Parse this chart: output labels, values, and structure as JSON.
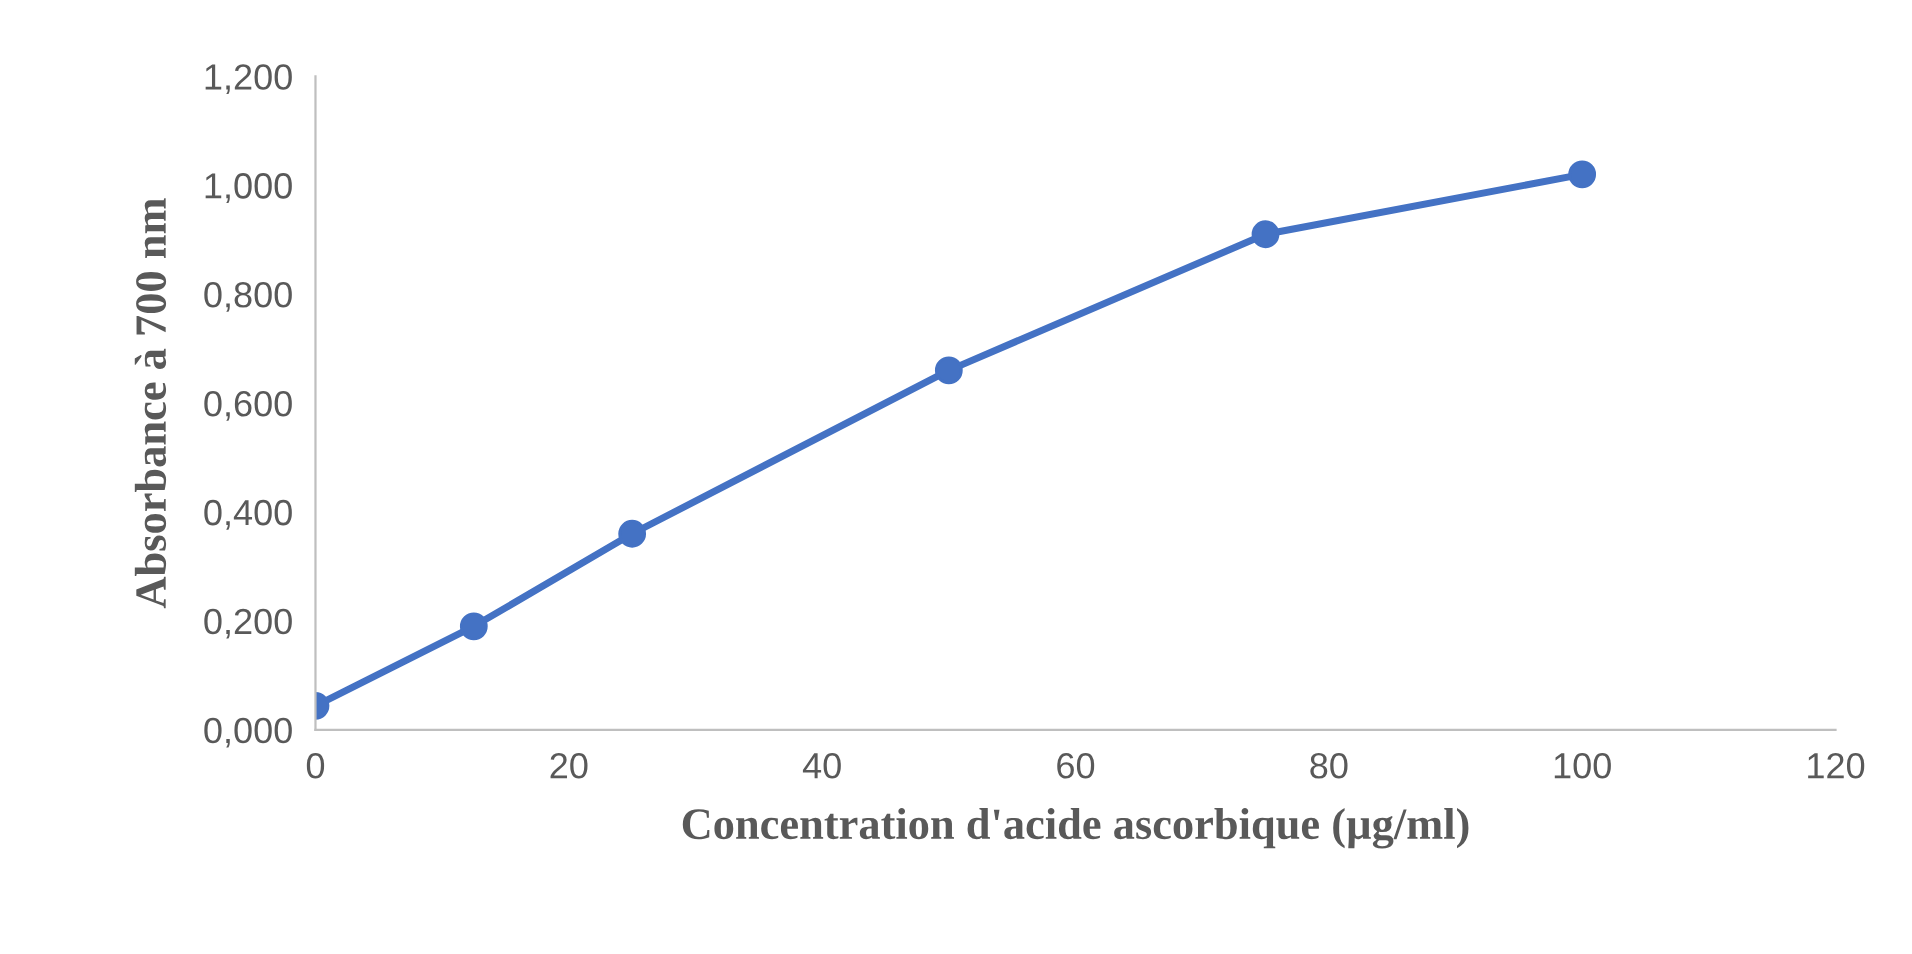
{
  "chart_data": {
    "type": "line",
    "xlabel": "Concentration d'acide ascorbique (µg/ml)",
    "ylabel": "Absorbance à 700 nm",
    "x": [
      0,
      12.5,
      25,
      50,
      75,
      100
    ],
    "series": [
      {
        "color": "#4472c4",
        "values": [
          0.044,
          0.19,
          0.36,
          0.66,
          0.91,
          1.02
        ]
      }
    ],
    "marker": "circle",
    "line_style": "solid",
    "grid": false,
    "legend": false,
    "xlim": [
      0,
      120
    ],
    "xticks": [
      0,
      20,
      40,
      60,
      80,
      100,
      120
    ],
    "ylim": [
      0,
      1.2
    ],
    "yticks": [
      {
        "value": 0,
        "label": "0,000"
      },
      {
        "value": 0.2,
        "label": "0,200"
      },
      {
        "value": 0.4,
        "label": "0,400"
      },
      {
        "value": 0.6,
        "label": "0,600"
      },
      {
        "value": 0.8,
        "label": "0,800"
      },
      {
        "value": 1.0,
        "label": "1,000"
      },
      {
        "value": 1.2,
        "label": "1,200"
      }
    ]
  }
}
